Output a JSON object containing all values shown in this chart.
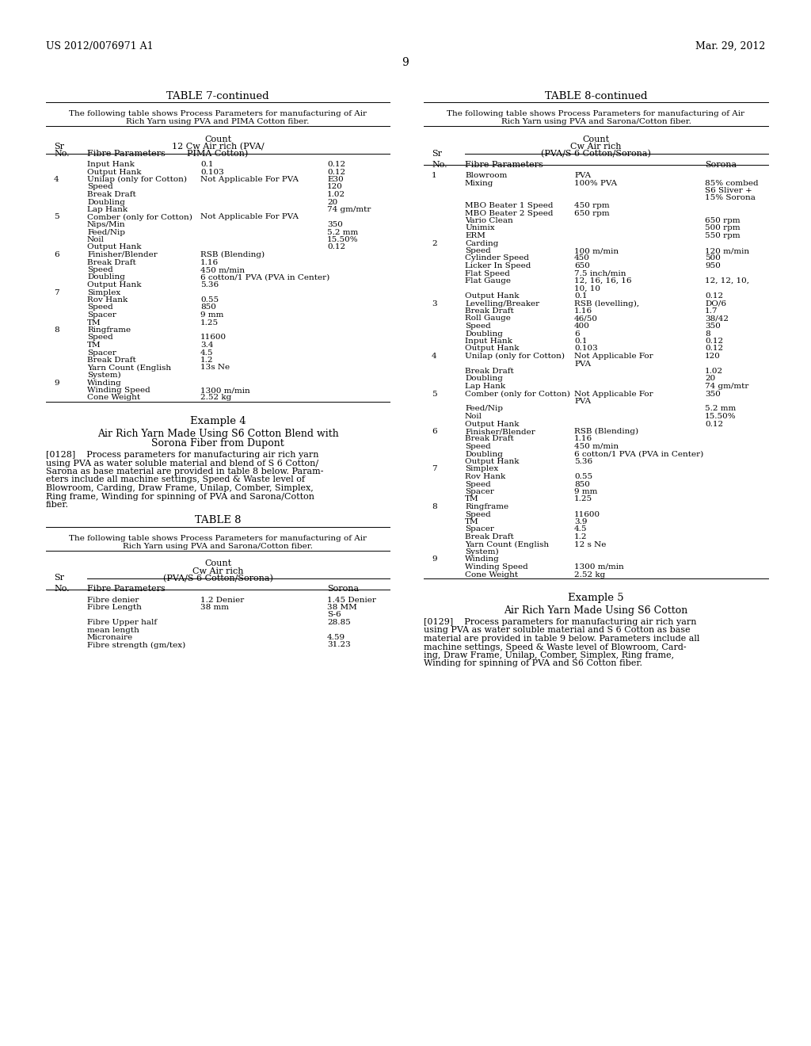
{
  "background_color": "#ffffff",
  "header_left": "US 2012/0076971 A1",
  "header_right": "Mar. 29, 2012",
  "page_number": "9",
  "left_table_title": "TABLE 7-continued",
  "left_table_desc1": "The following table shows Process Parameters for manufacturing of Air",
  "left_table_desc2": "Rich Yarn using PVA and PIMA Cotton fiber.",
  "right_table_title": "TABLE 8-continued",
  "right_table_desc1": "The following table shows Process Parameters for manufacturing of Air",
  "right_table_desc2": "Rich Yarn using PVA and Sarona/Cotton fiber.",
  "example4_title": "Example 4",
  "example4_subtitle1": "Air Rich Yarn Made Using S6 Cotton Blend with",
  "example4_subtitle2": "Sorona Fiber from Dupont",
  "example4_para": "[0128]    Process parameters for manufacturing air rich yarn using PVA as water soluble material and blend of S 6 Cotton/ Sarona as base material are provided in table 8 below. Param- eters include all machine settings, Speed & Waste level of Blowroom, Carding, Draw Frame, Unilap, Comber, Simplex, Ring frame, Winding for spinning of PVA and Sarona/Cotton fiber.",
  "table8_title": "TABLE 8",
  "table8_desc1": "The following table shows Process Parameters for manufacturing of Air",
  "table8_desc2": "Rich Yarn using PVA and Sarona/Cotton fiber.",
  "example5_title": "Example 5",
  "example5_subtitle": "Air Rich Yarn Made Using S6 Cotton",
  "example5_para": "[0129]    Process parameters for manufacturing air rich yarn using PVA as water soluble material and S 6 Cotton as base material are provided in table 9 below. Parameters include all machine settings, Speed & Waste level of Blowroom, Card- ing, Draw Frame, Unilap, Comber, Simplex, Ring frame, Winding for spinning of PVA and S6 Cotton fiber."
}
